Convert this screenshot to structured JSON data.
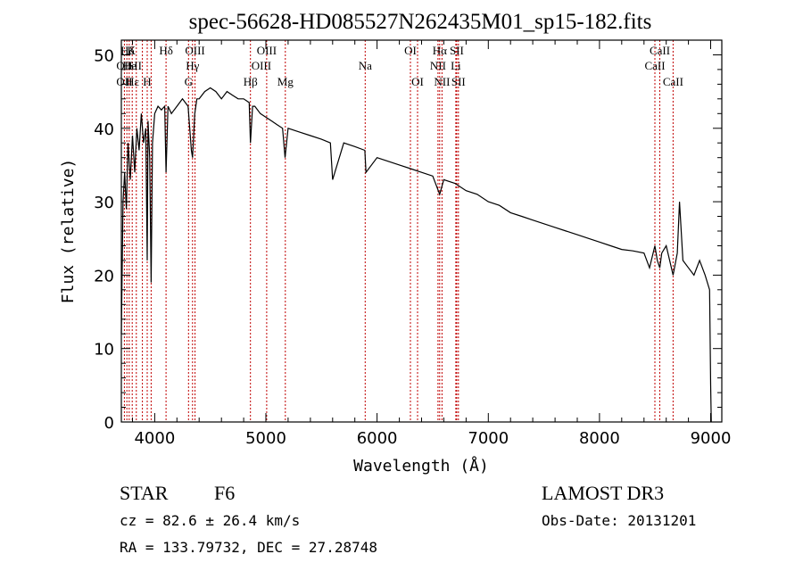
{
  "chart_data": {
    "type": "line",
    "title": "spec-56628-HD085527N262435M01_sp15-182.fits",
    "xlabel": "Wavelength (Å)",
    "ylabel": "Flux (relative)",
    "xlim": [
      3700,
      9100
    ],
    "ylim": [
      0,
      52
    ],
    "xticks": [
      4000,
      5000,
      6000,
      7000,
      8000,
      9000
    ],
    "yticks": [
      0,
      10,
      20,
      30,
      40,
      50
    ],
    "series": [
      {
        "name": "flux",
        "x": [
          3700,
          3715,
          3730,
          3745,
          3760,
          3780,
          3800,
          3820,
          3840,
          3860,
          3880,
          3900,
          3920,
          3933,
          3940,
          3955,
          3968,
          3980,
          4000,
          4030,
          4060,
          4090,
          4102,
          4120,
          4150,
          4200,
          4250,
          4300,
          4330,
          4340,
          4360,
          4380,
          4400,
          4450,
          4500,
          4550,
          4600,
          4650,
          4700,
          4750,
          4800,
          4850,
          4861,
          4880,
          4900,
          4950,
          5000,
          5050,
          5100,
          5150,
          5172,
          5200,
          5300,
          5400,
          5500,
          5580,
          5600,
          5700,
          5800,
          5890,
          5900,
          6000,
          6100,
          6200,
          6300,
          6400,
          6500,
          6563,
          6600,
          6700,
          6800,
          6900,
          7000,
          7100,
          7200,
          7300,
          7400,
          7500,
          7600,
          7700,
          7800,
          7900,
          8000,
          8100,
          8200,
          8300,
          8400,
          8450,
          8498,
          8520,
          8542,
          8560,
          8600,
          8662,
          8700,
          8720,
          8750,
          8800,
          8850,
          8900,
          8950,
          8990,
          9000,
          9005
        ],
        "y": [
          12,
          30,
          34,
          29,
          38,
          33,
          39,
          34,
          40,
          37,
          42,
          38,
          40,
          22,
          41,
          36,
          19,
          38,
          42,
          43,
          42.5,
          43,
          34,
          43,
          42,
          43,
          44,
          43,
          37,
          36,
          42,
          44,
          44,
          45,
          45.5,
          45,
          44,
          45,
          44.5,
          44,
          44,
          43.5,
          38,
          43,
          43,
          42,
          41.5,
          41,
          40.5,
          40,
          36,
          40,
          39.5,
          39,
          38.5,
          38,
          33,
          38,
          37.5,
          37,
          34,
          36,
          35.5,
          35,
          34.5,
          34,
          33.5,
          31,
          33,
          32.5,
          31.5,
          31,
          30,
          29.5,
          28.5,
          28,
          27.5,
          27,
          26.5,
          26,
          25.5,
          25,
          24.5,
          24,
          23.5,
          23.3,
          23,
          21,
          24,
          22,
          21,
          23,
          24,
          20,
          23,
          30,
          22,
          21,
          20,
          22,
          20,
          18,
          5,
          0
        ]
      }
    ],
    "spectral_lines": [
      {
        "label": "Hδ",
        "x": 3755,
        "row": 0
      },
      {
        "label": "K",
        "x": 3790,
        "row": 0
      },
      {
        "label": "Hδ",
        "x": 4102,
        "row": 0
      },
      {
        "label": "OIII",
        "x": 4363,
        "row": 0
      },
      {
        "label": "OIII",
        "x": 5007,
        "row": 0
      },
      {
        "label": "OI",
        "x": 6300,
        "row": 0
      },
      {
        "label": "Hα",
        "x": 6563,
        "row": 0
      },
      {
        "label": "SII",
        "x": 6716,
        "row": 0
      },
      {
        "label": "CaII",
        "x": 8542,
        "row": 0
      },
      {
        "label": "OII",
        "x": 3727,
        "row": 1
      },
      {
        "label": "He",
        "x": 3775,
        "row": 1
      },
      {
        "label": "SII",
        "x": 3820,
        "row": 1
      },
      {
        "label": "Hγ",
        "x": 4340,
        "row": 1
      },
      {
        "label": "OIII",
        "x": 4959,
        "row": 1
      },
      {
        "label": "Na",
        "x": 5893,
        "row": 1
      },
      {
        "label": "NII",
        "x": 6548,
        "row": 1
      },
      {
        "label": "Li",
        "x": 6708,
        "row": 1
      },
      {
        "label": "CaII",
        "x": 8498,
        "row": 1
      },
      {
        "label": "OII",
        "x": 3727,
        "row": 2
      },
      {
        "label": "Hε",
        "x": 3800,
        "row": 2
      },
      {
        "label": "H",
        "x": 3933,
        "row": 2
      },
      {
        "label": "G",
        "x": 4304,
        "row": 2
      },
      {
        "label": "Hβ",
        "x": 4861,
        "row": 2
      },
      {
        "label": "Mg",
        "x": 5175,
        "row": 2
      },
      {
        "label": "OI",
        "x": 6364,
        "row": 2
      },
      {
        "label": "NII",
        "x": 6584,
        "row": 2
      },
      {
        "label": "SII",
        "x": 6731,
        "row": 2
      },
      {
        "label": "CaII",
        "x": 8662,
        "row": 2
      }
    ],
    "line_markers_x": [
      3727,
      3750,
      3771,
      3798,
      3835,
      3889,
      3933,
      3968,
      4102,
      4304,
      4340,
      4363,
      4861,
      5007,
      5175,
      5893,
      6300,
      6364,
      6548,
      6563,
      6584,
      6708,
      6716,
      6731,
      8498,
      8542,
      8662
    ],
    "marker_color": "#c00000"
  },
  "info": {
    "object_type": "STAR",
    "subclass": "F6",
    "survey": "LAMOST DR3",
    "cz": "cz = 82.6 ± 26.4 km/s",
    "obs_date": "Obs-Date: 20131201",
    "coords": "RA = 133.79732, DEC =  27.28748"
  }
}
